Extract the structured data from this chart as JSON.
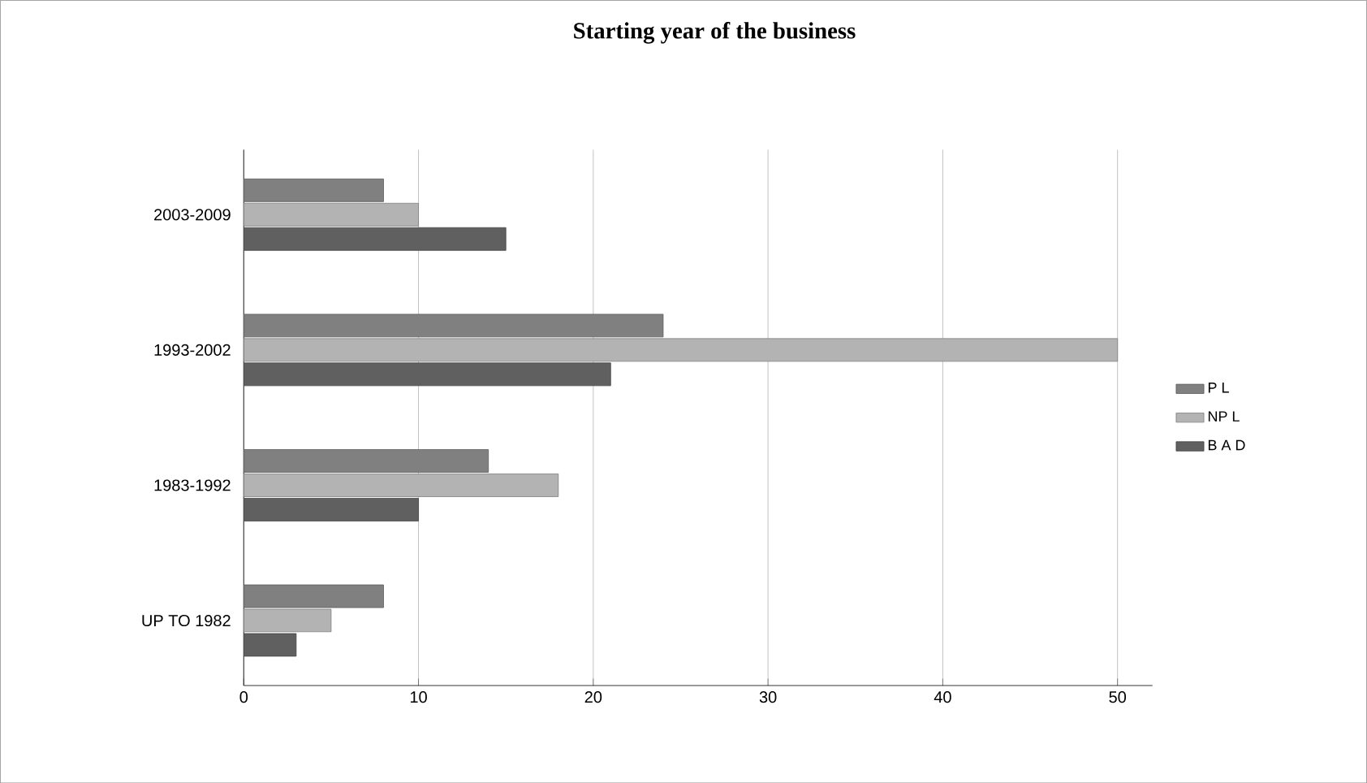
{
  "chart_data": {
    "type": "bar",
    "orientation": "horizontal",
    "title": "Starting year of the business",
    "categories": [
      "2003-2009",
      "1993-2002",
      "1983-1992",
      "UP TO 1982"
    ],
    "series": [
      {
        "name": "P L",
        "color": "#808080",
        "values": [
          8,
          24,
          14,
          8
        ]
      },
      {
        "name": "NP L",
        "color": "#b3b3b3",
        "values": [
          10,
          50,
          18,
          5
        ]
      },
      {
        "name": "B A D",
        "color": "#606060",
        "values": [
          15,
          21,
          10,
          3
        ]
      }
    ],
    "xlim": [
      0,
      52
    ],
    "xticks": [
      0,
      10,
      20,
      30,
      40,
      50
    ],
    "grid": "x",
    "legend": "right"
  }
}
